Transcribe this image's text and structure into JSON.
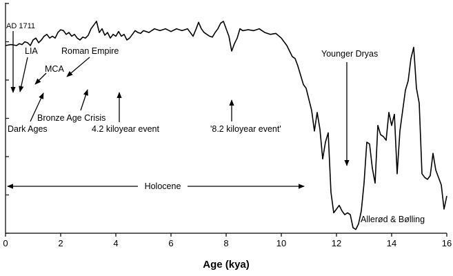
{
  "chart_data": {
    "type": "line",
    "title": "",
    "xlabel": "Age (kya)",
    "ylabel": "",
    "xlim": [
      0,
      16
    ],
    "xticks": [
      0,
      2,
      4,
      6,
      8,
      10,
      12,
      14,
      16
    ],
    "grid": false,
    "legend": "none",
    "line_color": "#000000",
    "series": [
      {
        "x": [
          0,
          0.2,
          0.4,
          0.5,
          0.6,
          0.7,
          0.8,
          0.9,
          1.0,
          1.1,
          1.2,
          1.3,
          1.4,
          1.5,
          1.6,
          1.7,
          1.8,
          1.9,
          2.0,
          2.1,
          2.2,
          2.3,
          2.4,
          2.5,
          2.6,
          2.7,
          2.8,
          2.9,
          3.0,
          3.1,
          3.2,
          3.3,
          3.4,
          3.5,
          3.6,
          3.7,
          3.8,
          3.9,
          4.0,
          4.1,
          4.2,
          4.3,
          4.4,
          4.5,
          4.6,
          4.7,
          4.8,
          4.9,
          5.0,
          5.2,
          5.4,
          5.6,
          5.8,
          6.0,
          6.2,
          6.4,
          6.6,
          6.8,
          6.9,
          7.0,
          7.1,
          7.2,
          7.3,
          7.4,
          7.5,
          7.6,
          7.7,
          7.8,
          7.9,
          8.0,
          8.1,
          8.2,
          8.3,
          8.4,
          8.5,
          8.6,
          8.8,
          9.0,
          9.2,
          9.4,
          9.6,
          9.8,
          10.0,
          10.2,
          10.4,
          10.5,
          10.6,
          10.7,
          10.8,
          10.9,
          11.0,
          11.1,
          11.2,
          11.3,
          11.4,
          11.5,
          11.6,
          11.7,
          11.8,
          11.9,
          12.0,
          12.1,
          12.2,
          12.3,
          12.4,
          12.5,
          12.6,
          12.7,
          12.8,
          12.9,
          13.0,
          13.1,
          13.2,
          13.3,
          13.4,
          13.5,
          13.6,
          13.7,
          13.8,
          13.9,
          14.0,
          14.1,
          14.2,
          14.3,
          14.4,
          14.5,
          14.6,
          14.7,
          14.8,
          14.9,
          15.0,
          15.1,
          15.2,
          15.3,
          15.4,
          15.5,
          15.6,
          15.7,
          15.8,
          15.9,
          16.0
        ],
        "y": [
          -34.9,
          -34.85,
          -34.9,
          -34.8,
          -34.85,
          -34.7,
          -34.75,
          -34.9,
          -34.6,
          -34.5,
          -34.75,
          -34.6,
          -34.4,
          -34.3,
          -34.5,
          -34.4,
          -34.5,
          -34.2,
          -34.05,
          -34.1,
          -34.3,
          -34.2,
          -34.4,
          -34.3,
          -34.5,
          -34.6,
          -34.45,
          -34.5,
          -34.35,
          -34.0,
          -33.8,
          -33.6,
          -34.2,
          -34.0,
          -34.35,
          -34.2,
          -34.5,
          -34.3,
          -34.4,
          -34.15,
          -34.4,
          -34.3,
          -34.6,
          -34.5,
          -34.3,
          -34.1,
          -34.2,
          -34.25,
          -34.1,
          -34.2,
          -34.0,
          -34.1,
          -34.0,
          -34.15,
          -34.0,
          -34.1,
          -34.0,
          -34.4,
          -34.05,
          -33.65,
          -34.0,
          -34.2,
          -34.3,
          -34.4,
          -34.45,
          -34.2,
          -34.0,
          -33.7,
          -33.6,
          -34.0,
          -34.4,
          -35.2,
          -34.8,
          -34.5,
          -34.0,
          -34.1,
          -34.05,
          -34.1,
          -34.0,
          -34.2,
          -34.3,
          -34.25,
          -34.5,
          -34.9,
          -35.5,
          -35.6,
          -36.0,
          -36.5,
          -37.0,
          -37.2,
          -37.8,
          -38.4,
          -39.5,
          -38.5,
          -39.4,
          -41.0,
          -40.1,
          -39.6,
          -42.8,
          -43.9,
          -43.7,
          -43.5,
          -43.8,
          -44.0,
          -43.9,
          -44.0,
          -44.7,
          -44.8,
          -44.5,
          -43.8,
          -42.3,
          -40.1,
          -40.2,
          -41.5,
          -42.3,
          -39.2,
          -39.7,
          -39.8,
          -40.0,
          -38.5,
          -39.2,
          -38.6,
          -41.8,
          -39.5,
          -38.4,
          -37.3,
          -36.8,
          -35.6,
          -35.0,
          -37.2,
          -38.0,
          -41.8,
          -42.0,
          -42.1,
          -41.9,
          -40.7,
          -41.6,
          -42.0,
          -42.4,
          -43.7,
          -43.0
        ],
        "y_display_min": -45,
        "y_display_max": -32.6
      }
    ],
    "annotations": [
      {
        "id": "ad1711",
        "text": "AD 1711",
        "x": 0.29,
        "arrow": true
      },
      {
        "id": "lia",
        "text": "LIA",
        "x": 0.5,
        "arrow": true
      },
      {
        "id": "mca",
        "text": "MCA",
        "x": 1.1,
        "arrow": true
      },
      {
        "id": "roman-empire",
        "text": "Roman Empire",
        "x": 2.2,
        "arrow": true
      },
      {
        "id": "dark-ages",
        "text": "Dark Ages",
        "x": 1.3,
        "arrow": true
      },
      {
        "id": "bronze-age-crisis",
        "text": "Bronze Age Crisis",
        "x": 3.0,
        "arrow": true
      },
      {
        "id": "event-4-2",
        "text": "4.2 kiloyear event",
        "x": 4.1,
        "arrow": true
      },
      {
        "id": "event-8-2",
        "text": "'8.2 kiloyear event'",
        "x": 8.2,
        "arrow": true
      },
      {
        "id": "younger-dryas",
        "text": "Younger Dryas",
        "x": 12.4,
        "arrow": true
      },
      {
        "id": "holocene",
        "text": "Holocene",
        "x_from": 0.1,
        "x_to": 10.9,
        "arrow": true
      },
      {
        "id": "allerod-bolling",
        "text": "Allerød & Bølling",
        "x": 14.5,
        "arrow": false
      }
    ]
  }
}
